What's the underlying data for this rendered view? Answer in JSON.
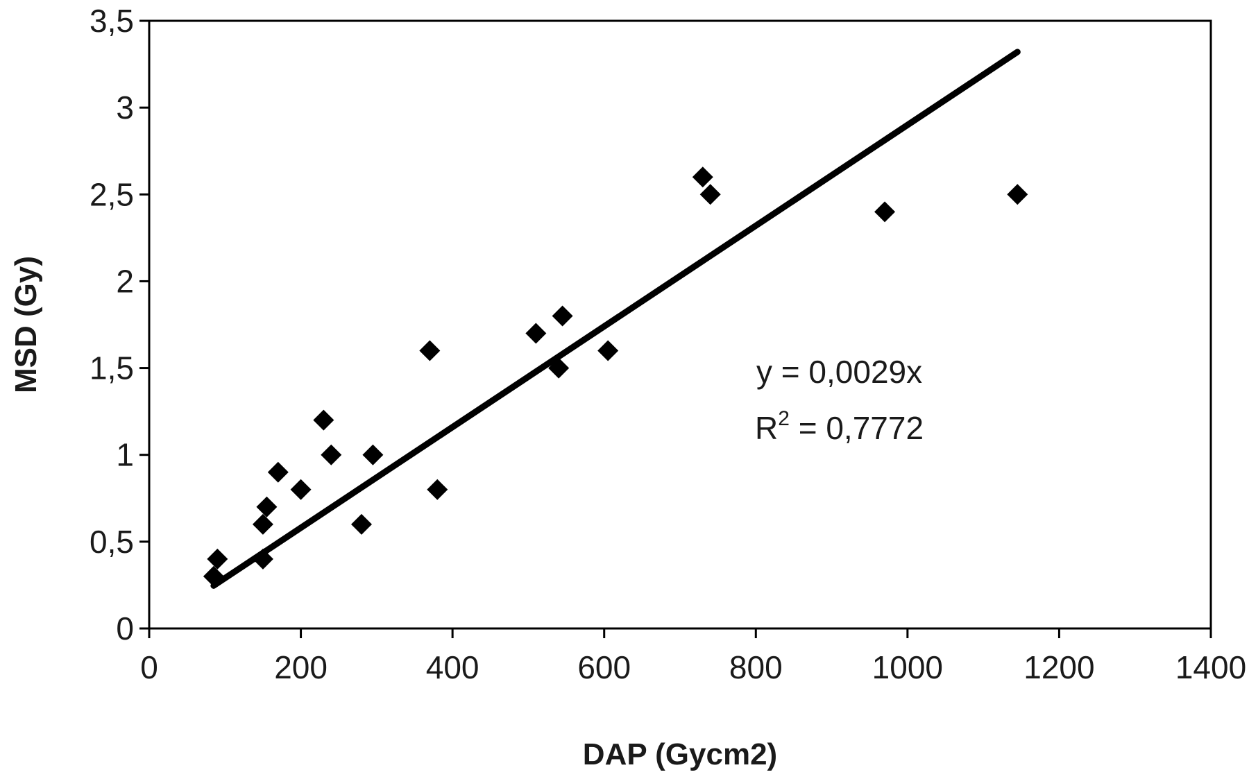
{
  "chart_data": {
    "type": "scatter",
    "xlabel": "DAP (Gycm2)",
    "ylabel": "MSD (Gy)",
    "xlim": [
      0,
      1400
    ],
    "ylim": [
      0,
      3.5
    ],
    "x_ticks": [
      "0",
      "200",
      "400",
      "600",
      "800",
      "1000",
      "1200",
      "1400"
    ],
    "y_ticks": [
      "0",
      "0,5",
      "1",
      "1,5",
      "2",
      "2,5",
      "3",
      "3,5"
    ],
    "grid": false,
    "legend": "none",
    "marker": "diamond",
    "series": [
      {
        "points": [
          [
            85,
            0.3
          ],
          [
            90,
            0.4
          ],
          [
            150,
            0.4
          ],
          [
            150,
            0.6
          ],
          [
            155,
            0.7
          ],
          [
            170,
            0.9
          ],
          [
            200,
            0.8
          ],
          [
            230,
            1.2
          ],
          [
            240,
            1.0
          ],
          [
            280,
            0.6
          ],
          [
            295,
            1.0
          ],
          [
            370,
            1.6
          ],
          [
            380,
            0.8
          ],
          [
            510,
            1.7
          ],
          [
            540,
            1.5
          ],
          [
            545,
            1.8
          ],
          [
            605,
            1.6
          ],
          [
            730,
            2.6
          ],
          [
            740,
            2.5
          ],
          [
            970,
            2.4
          ],
          [
            1145,
            2.5
          ]
        ]
      }
    ],
    "trendline": {
      "slope": 0.0029,
      "intercept": 0,
      "x_range": [
        85,
        1145
      ]
    },
    "annotations": {
      "equation": "y = 0,0029x",
      "r_squared_prefix": "R",
      "r_squared_exp": "2",
      "r_squared_value": " = 0,7772"
    },
    "colors": {
      "marker": "#000000",
      "line": "#000000",
      "axis": "#000000"
    }
  }
}
